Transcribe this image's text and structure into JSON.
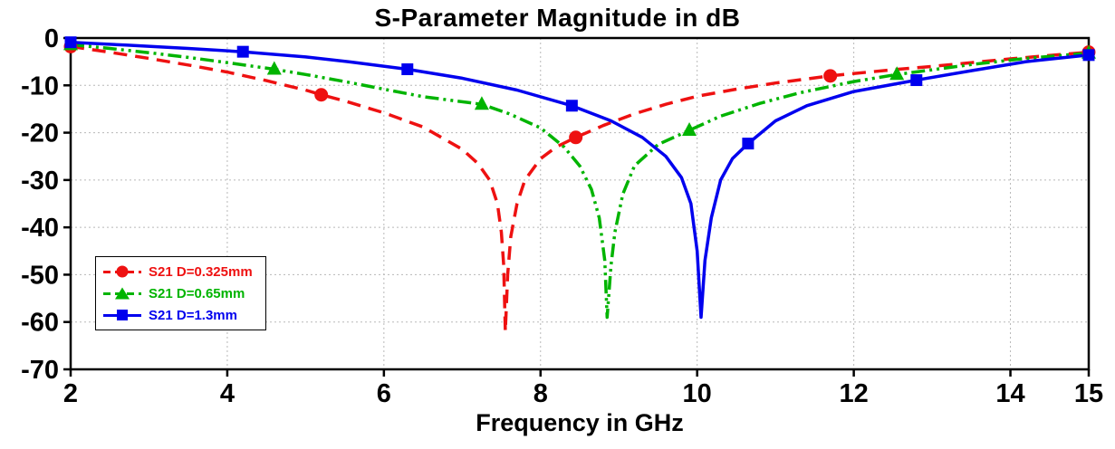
{
  "title": "S-Parameter Magnitude in dB",
  "xlabel": "Frequency in GHz",
  "chart_data": {
    "type": "line",
    "title": "S-Parameter Magnitude in dB",
    "xlabel": "Frequency in GHz",
    "ylabel": "",
    "xlim": [
      2,
      15
    ],
    "ylim": [
      -70,
      0
    ],
    "x_ticks": [
      2,
      4,
      6,
      8,
      10,
      12,
      14,
      15
    ],
    "y_ticks": [
      0,
      -10,
      -20,
      -30,
      -40,
      -50,
      -60,
      -70
    ],
    "grid": true,
    "legend_position": "lower-left",
    "series": [
      {
        "label": "S21 D=0.325mm",
        "color": "#ee1111",
        "dash": "dashed",
        "marker": "circle",
        "notch_ghz": 7.55,
        "notch_depth_db": -62,
        "points": [
          [
            2,
            -1.8
          ],
          [
            2.5,
            -3
          ],
          [
            3,
            -4.3
          ],
          [
            3.5,
            -5.7
          ],
          [
            4,
            -7.2
          ],
          [
            4.5,
            -9
          ],
          [
            5,
            -11
          ],
          [
            5.2,
            -12
          ],
          [
            5.5,
            -13.3
          ],
          [
            6,
            -15.8
          ],
          [
            6.5,
            -18.8
          ],
          [
            7,
            -23.5
          ],
          [
            7.2,
            -26.5
          ],
          [
            7.35,
            -30
          ],
          [
            7.45,
            -35
          ],
          [
            7.5,
            -41
          ],
          [
            7.53,
            -48
          ],
          [
            7.55,
            -62
          ],
          [
            7.58,
            -50
          ],
          [
            7.62,
            -42
          ],
          [
            7.7,
            -35
          ],
          [
            7.8,
            -30
          ],
          [
            8,
            -25.5
          ],
          [
            8.2,
            -23
          ],
          [
            8.45,
            -21
          ],
          [
            8.8,
            -18.5
          ],
          [
            9.2,
            -16
          ],
          [
            9.6,
            -14
          ],
          [
            10,
            -12.3
          ],
          [
            10.5,
            -10.8
          ],
          [
            11,
            -9.5
          ],
          [
            11.7,
            -8
          ],
          [
            12.5,
            -6.7
          ],
          [
            13,
            -6
          ],
          [
            13.5,
            -5.2
          ],
          [
            14,
            -4.4
          ],
          [
            14.5,
            -3.7
          ],
          [
            15,
            -3
          ]
        ],
        "marker_points": [
          [
            2,
            -1.8
          ],
          [
            5.2,
            -12
          ],
          [
            8.45,
            -21
          ],
          [
            11.7,
            -8
          ],
          [
            15,
            -3
          ]
        ]
      },
      {
        "label": "S21 D=0.65mm",
        "color": "#00b400",
        "dash": "dash-dot",
        "marker": "triangle",
        "notch_ghz": 8.85,
        "notch_depth_db": -59,
        "points": [
          [
            2,
            -1.4
          ],
          [
            2.5,
            -2.2
          ],
          [
            3,
            -3.1
          ],
          [
            3.5,
            -4.1
          ],
          [
            4,
            -5.2
          ],
          [
            4.6,
            -6.6
          ],
          [
            5,
            -7.7
          ],
          [
            5.5,
            -9.2
          ],
          [
            6,
            -10.8
          ],
          [
            6.5,
            -12.4
          ],
          [
            7.25,
            -14
          ],
          [
            7.6,
            -16
          ],
          [
            8,
            -19
          ],
          [
            8.3,
            -23
          ],
          [
            8.5,
            -27
          ],
          [
            8.65,
            -32
          ],
          [
            8.75,
            -38
          ],
          [
            8.82,
            -47
          ],
          [
            8.85,
            -59
          ],
          [
            8.9,
            -48
          ],
          [
            8.95,
            -41
          ],
          [
            9.05,
            -33
          ],
          [
            9.2,
            -27
          ],
          [
            9.5,
            -22.5
          ],
          [
            9.9,
            -19.5
          ],
          [
            10.3,
            -16.5
          ],
          [
            10.8,
            -13.8
          ],
          [
            11.3,
            -11.6
          ],
          [
            12,
            -9.2
          ],
          [
            12.55,
            -7.7
          ],
          [
            13.5,
            -5.6
          ],
          [
            14.2,
            -4.3
          ],
          [
            15,
            -3.2
          ]
        ],
        "marker_points": [
          [
            2,
            -1.4
          ],
          [
            4.6,
            -6.6
          ],
          [
            7.25,
            -14
          ],
          [
            9.9,
            -19.5
          ],
          [
            12.55,
            -7.7
          ],
          [
            15,
            -3.2
          ]
        ]
      },
      {
        "label": "S21 D=1.3mm",
        "color": "#0000ee",
        "dash": "solid",
        "marker": "square",
        "notch_ghz": 10.05,
        "notch_depth_db": -59,
        "points": [
          [
            2,
            -0.9
          ],
          [
            2.7,
            -1.5
          ],
          [
            3.5,
            -2.2
          ],
          [
            4.2,
            -2.9
          ],
          [
            5,
            -4
          ],
          [
            5.6,
            -5.1
          ],
          [
            6.3,
            -6.6
          ],
          [
            7,
            -8.5
          ],
          [
            7.7,
            -11
          ],
          [
            8.4,
            -14.3
          ],
          [
            8.9,
            -17.5
          ],
          [
            9.3,
            -21
          ],
          [
            9.6,
            -25
          ],
          [
            9.8,
            -29.5
          ],
          [
            9.92,
            -35
          ],
          [
            10,
            -45
          ],
          [
            10.05,
            -59
          ],
          [
            10.1,
            -47
          ],
          [
            10.18,
            -38
          ],
          [
            10.3,
            -30
          ],
          [
            10.45,
            -25.5
          ],
          [
            10.65,
            -22.3
          ],
          [
            11,
            -17.5
          ],
          [
            11.4,
            -14.3
          ],
          [
            12,
            -11.3
          ],
          [
            12.8,
            -8.9
          ],
          [
            13.5,
            -6.9
          ],
          [
            14.2,
            -5
          ],
          [
            15,
            -3.6
          ]
        ],
        "marker_points": [
          [
            2,
            -0.9
          ],
          [
            4.2,
            -2.9
          ],
          [
            6.3,
            -6.6
          ],
          [
            8.4,
            -14.3
          ],
          [
            10.65,
            -22.3
          ],
          [
            12.8,
            -8.9
          ],
          [
            15,
            -3.6
          ]
        ]
      }
    ]
  }
}
